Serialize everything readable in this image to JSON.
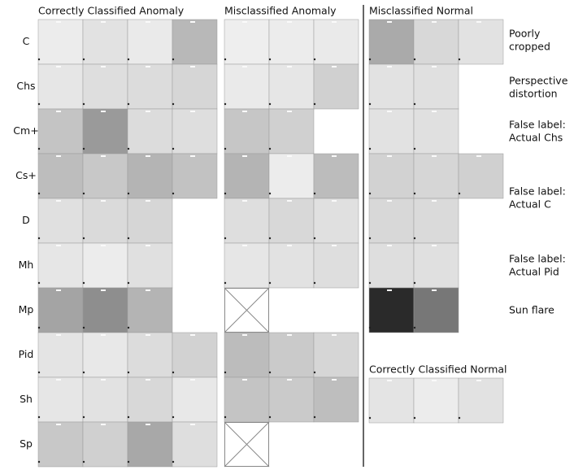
{
  "headers": {
    "correct_anomaly": "Correctly Classified Anomaly",
    "mis_anomaly": "Misclassified Anomaly",
    "mis_normal": "Misclassified Normal",
    "correct_normal": "Correctly Classified Normal"
  },
  "row_labels": [
    "C",
    "Chs",
    "Cm+",
    "Cs+",
    "D",
    "Mh",
    "Mp",
    "Pid",
    "Sh",
    "Sp"
  ],
  "notes": [
    [
      "Poorly",
      "cropped"
    ],
    [
      "Perspective",
      "distortion"
    ],
    [
      "False label:",
      "Actual Chs"
    ],
    [
      "False label:",
      "Actual C"
    ],
    [
      "False label:",
      "Actual Pid"
    ],
    [
      "Sun flare"
    ]
  ]
}
